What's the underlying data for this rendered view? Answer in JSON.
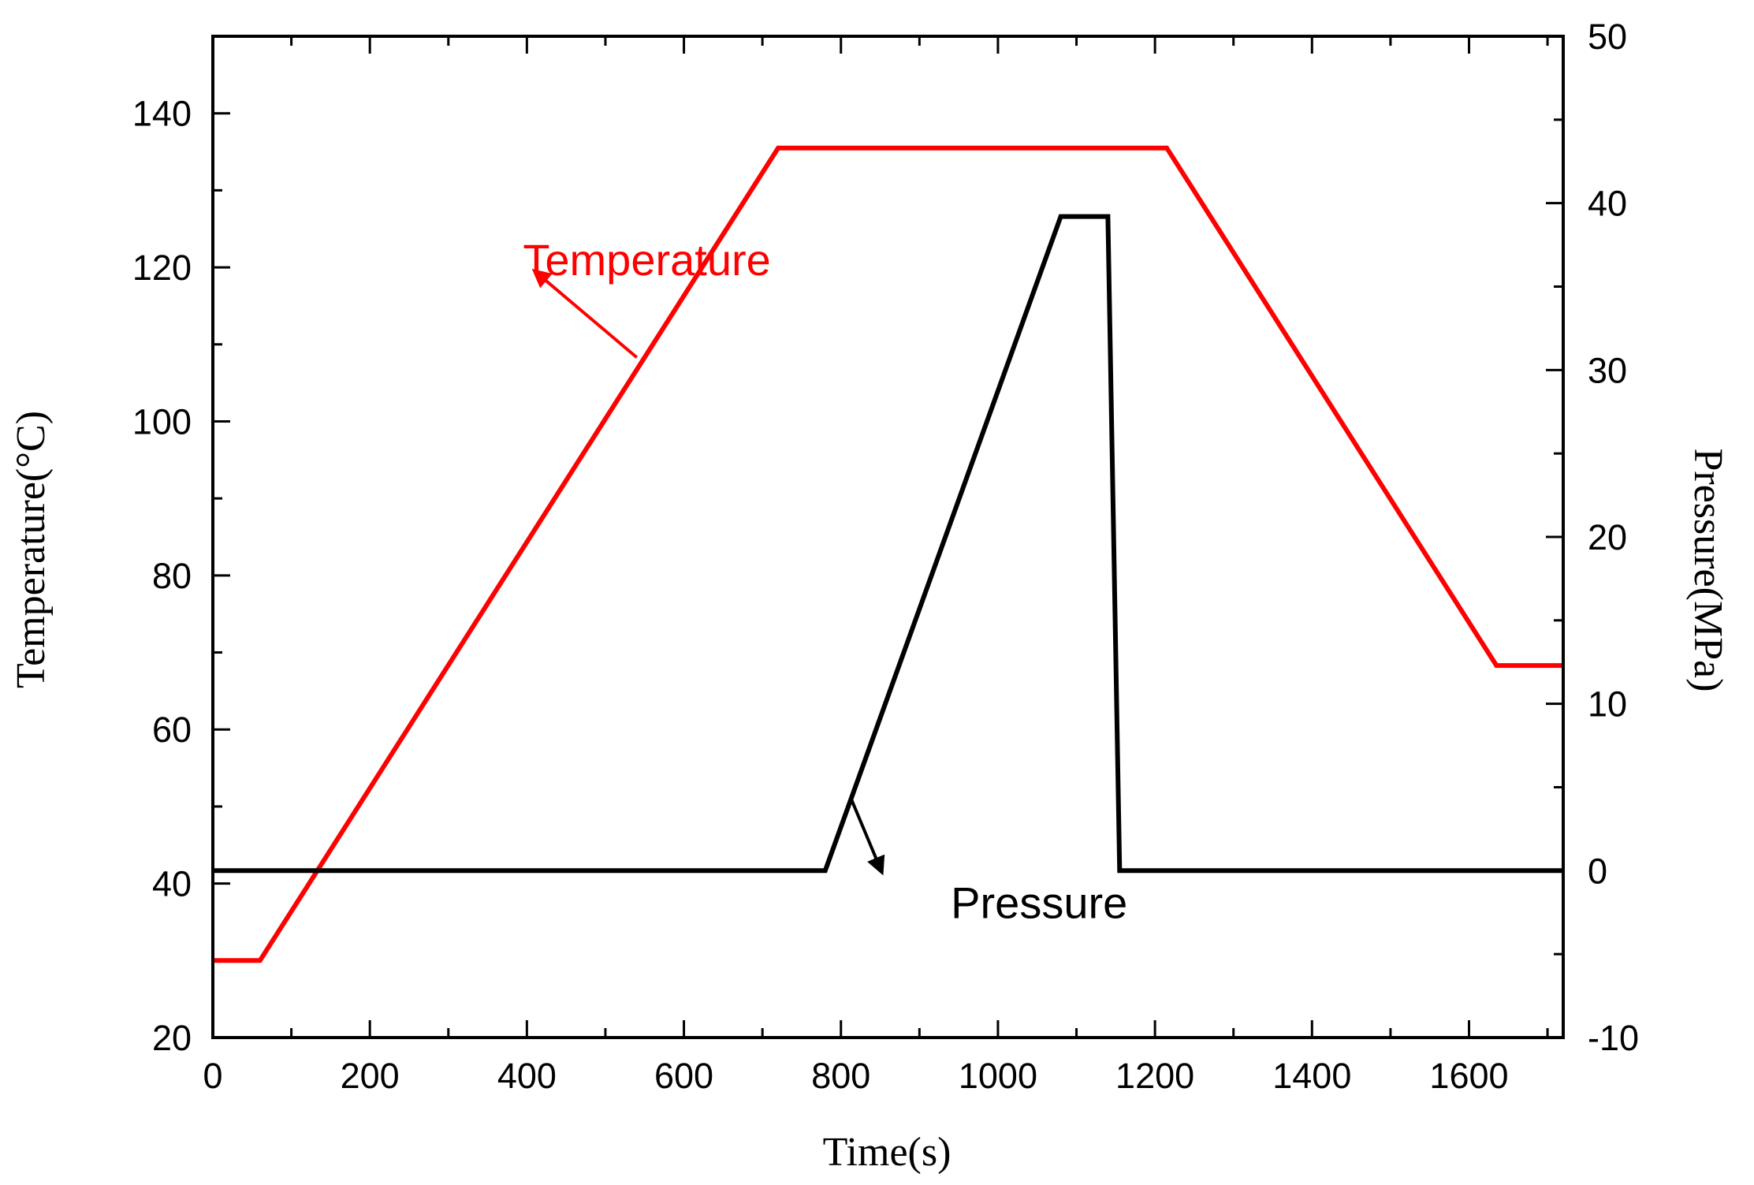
{
  "chart_data": {
    "type": "line",
    "title": "",
    "xlabel": "Time(s)",
    "ylabel_left": "Temperature(°C)",
    "ylabel_right": "Pressure(MPa)",
    "xlim": [
      0,
      1720
    ],
    "ylim_left": [
      20,
      150
    ],
    "ylim_right": [
      -10,
      50
    ],
    "x_ticks": [
      0,
      200,
      400,
      600,
      800,
      1000,
      1200,
      1400,
      1600
    ],
    "x_tick_labels": [
      "0",
      "200",
      "400",
      "600",
      "800",
      "1000",
      "1200",
      "1400",
      "1600"
    ],
    "y_left_ticks": [
      20,
      40,
      60,
      80,
      100,
      120,
      140
    ],
    "y_left_tick_labels": [
      "20",
      "40",
      "60",
      "80",
      "100",
      "120",
      "140"
    ],
    "y_right_ticks": [
      -10,
      0,
      10,
      20,
      30,
      40,
      50
    ],
    "y_right_tick_labels": [
      "-10",
      "0",
      "10",
      "20",
      "30",
      "40",
      "50"
    ],
    "grid": false,
    "series": [
      {
        "name": "Temperature",
        "axis": "left",
        "color": "#ff0000",
        "x": [
          0,
          60,
          720,
          1215,
          1635,
          1720
        ],
        "y": [
          30,
          30,
          135.5,
          135.5,
          68.3,
          68.3
        ]
      },
      {
        "name": "Pressure",
        "axis": "right",
        "color": "#000000",
        "x": [
          0,
          780,
          1080,
          1140,
          1155,
          1720
        ],
        "y": [
          0,
          0,
          39.2,
          39.2,
          0,
          0
        ]
      }
    ],
    "annotations": [
      {
        "text": "Temperature",
        "color": "#ff0000",
        "label_at": {
          "x": 395,
          "y_left": 119
        },
        "arrow_from": {
          "x": 540,
          "y_left": 108.3
        },
        "arrow_to": {
          "x": 410,
          "y_left": 119.5
        }
      },
      {
        "text": "Pressure",
        "color": "#000000",
        "label_at": {
          "x": 940,
          "y_left": 35.5
        },
        "arrow_from": {
          "x": 813,
          "y_left": 51
        },
        "arrow_to": {
          "x": 852,
          "y_left": 41.5
        }
      }
    ]
  }
}
